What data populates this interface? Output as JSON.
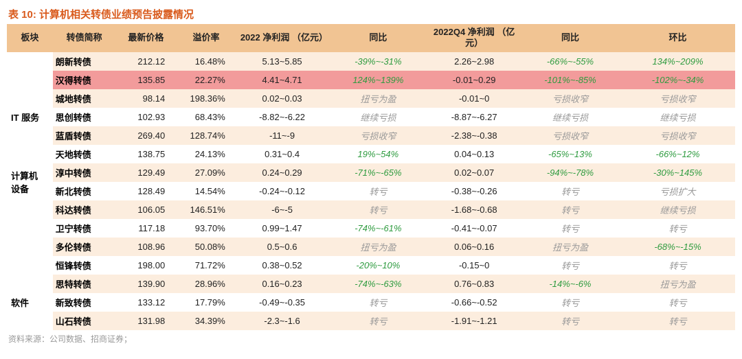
{
  "caption_prefix": "表 10:",
  "caption_text": "计算机相关转债业绩预告披露情况",
  "source": "资料来源：公司数据、招商证券；",
  "headers": {
    "sector": "板块",
    "name": "转债简称",
    "price": "最新价格",
    "premium": "溢价率",
    "profit2022": "2022 净利润\n（亿元）",
    "yoy": "同比",
    "profit2022q4": "2022Q4 净利润\n（亿元）",
    "yoy_q4": "同比",
    "qoq": "环比"
  },
  "colors": {
    "header_bg": "#f1c493",
    "odd_bg": "#fcedde",
    "even_bg": "#ffffff",
    "highlight_bg": "#f29b9b",
    "caption_color": "#d95a1c",
    "grey_text": "#999999",
    "green_text": "#2e9b3f"
  },
  "sectors": [
    {
      "label": "IT 服务",
      "start": 0,
      "span": 5,
      "label_row": 2
    },
    {
      "label": "计算机\n设备",
      "start": 5,
      "span": 4,
      "label_row": 5
    },
    {
      "label": "软件",
      "start": 9,
      "span": 6,
      "label_row": 12
    }
  ],
  "rows": [
    {
      "name": "朗新转债",
      "price": "212.12",
      "prem": "16.48%",
      "p2022": "5.13~5.85",
      "yoy": "-39%~-31%",
      "yoy_cls": "green",
      "p4": "2.26~2.98",
      "yoy4": "-66%~-55%",
      "yoy4_cls": "green",
      "qoq": "134%~209%",
      "qoq_cls": "green",
      "strip": "odd",
      "hl": false
    },
    {
      "name": "汉得转债",
      "price": "135.85",
      "prem": "22.27%",
      "p2022": "4.41~4.71",
      "yoy": "124%~139%",
      "yoy_cls": "green",
      "p4": "-0.01~0.29",
      "yoy4": "-101%~-85%",
      "yoy4_cls": "green",
      "qoq": "-102%~-34%",
      "qoq_cls": "green",
      "strip": "even",
      "hl": true
    },
    {
      "name": "城地转债",
      "price": "98.14",
      "prem": "198.36%",
      "p2022": "0.02~0.03",
      "yoy": "扭亏为盈",
      "yoy_cls": "grey",
      "p4": "-0.01~0",
      "yoy4": "亏损收窄",
      "yoy4_cls": "grey",
      "qoq": "亏损收窄",
      "qoq_cls": "grey",
      "strip": "odd",
      "hl": false
    },
    {
      "name": "思创转债",
      "price": "102.93",
      "prem": "68.43%",
      "p2022": "-8.82~-6.22",
      "yoy": "继续亏损",
      "yoy_cls": "grey",
      "p4": "-8.87~-6.27",
      "yoy4": "继续亏损",
      "yoy4_cls": "grey",
      "qoq": "继续亏损",
      "qoq_cls": "grey",
      "strip": "even",
      "hl": false
    },
    {
      "name": "蓝盾转债",
      "price": "269.40",
      "prem": "128.74%",
      "p2022": "-11~-9",
      "yoy": "亏损收窄",
      "yoy_cls": "grey",
      "p4": "-2.38~-0.38",
      "yoy4": "亏损收窄",
      "yoy4_cls": "grey",
      "qoq": "亏损收窄",
      "qoq_cls": "grey",
      "strip": "odd",
      "hl": false
    },
    {
      "name": "天地转债",
      "price": "138.75",
      "prem": "24.13%",
      "p2022": "0.31~0.4",
      "yoy": "19%~54%",
      "yoy_cls": "green",
      "p4": "0.04~0.13",
      "yoy4": "-65%~13%",
      "yoy4_cls": "green",
      "qoq": "-66%~12%",
      "qoq_cls": "green",
      "strip": "even",
      "hl": false
    },
    {
      "name": "淳中转债",
      "price": "129.49",
      "prem": "27.09%",
      "p2022": "0.24~0.29",
      "yoy": "-71%~-65%",
      "yoy_cls": "green",
      "p4": "0.02~0.07",
      "yoy4": "-94%~-78%",
      "yoy4_cls": "green",
      "qoq": "-30%~145%",
      "qoq_cls": "green",
      "strip": "odd",
      "hl": false
    },
    {
      "name": "新北转债",
      "price": "128.49",
      "prem": "14.54%",
      "p2022": "-0.24~-0.12",
      "yoy": "转亏",
      "yoy_cls": "grey",
      "p4": "-0.38~-0.26",
      "yoy4": "转亏",
      "yoy4_cls": "grey",
      "qoq": "亏损扩大",
      "qoq_cls": "grey",
      "strip": "even",
      "hl": false
    },
    {
      "name": "科达转债",
      "price": "106.05",
      "prem": "146.51%",
      "p2022": "-6~-5",
      "yoy": "转亏",
      "yoy_cls": "grey",
      "p4": "-1.68~-0.68",
      "yoy4": "转亏",
      "yoy4_cls": "grey",
      "qoq": "继续亏损",
      "qoq_cls": "grey",
      "strip": "odd",
      "hl": false
    },
    {
      "name": "卫宁转债",
      "price": "117.18",
      "prem": "93.70%",
      "p2022": "0.99~1.47",
      "yoy": "-74%~-61%",
      "yoy_cls": "green",
      "p4": "-0.41~-0.07",
      "yoy4": "转亏",
      "yoy4_cls": "grey",
      "qoq": "转亏",
      "qoq_cls": "grey",
      "strip": "even",
      "hl": false
    },
    {
      "name": "多伦转债",
      "price": "108.96",
      "prem": "50.08%",
      "p2022": "0.5~0.6",
      "yoy": "扭亏为盈",
      "yoy_cls": "grey",
      "p4": "0.06~0.16",
      "yoy4": "扭亏为盈",
      "yoy4_cls": "grey",
      "qoq": "-68%~-15%",
      "qoq_cls": "green",
      "strip": "odd",
      "hl": false
    },
    {
      "name": "恒锋转债",
      "price": "198.00",
      "prem": "71.72%",
      "p2022": "0.38~0.52",
      "yoy": "-20%~10%",
      "yoy_cls": "green",
      "p4": "-0.15~0",
      "yoy4": "转亏",
      "yoy4_cls": "grey",
      "qoq": "转亏",
      "qoq_cls": "grey",
      "strip": "even",
      "hl": false
    },
    {
      "name": "思特转债",
      "price": "139.90",
      "prem": "28.96%",
      "p2022": "0.16~0.23",
      "yoy": "-74%~-63%",
      "yoy_cls": "green",
      "p4": "0.76~0.83",
      "yoy4": "-14%~-6%",
      "yoy4_cls": "green",
      "qoq": "扭亏为盈",
      "qoq_cls": "grey",
      "strip": "odd",
      "hl": false
    },
    {
      "name": "新致转债",
      "price": "133.12",
      "prem": "17.79%",
      "p2022": "-0.49~-0.35",
      "yoy": "转亏",
      "yoy_cls": "grey",
      "p4": "-0.66~-0.52",
      "yoy4": "转亏",
      "yoy4_cls": "grey",
      "qoq": "转亏",
      "qoq_cls": "grey",
      "strip": "even",
      "hl": false
    },
    {
      "name": "山石转债",
      "price": "131.98",
      "prem": "34.39%",
      "p2022": "-2.3~-1.6",
      "yoy": "转亏",
      "yoy_cls": "grey",
      "p4": "-1.91~-1.21",
      "yoy4": "转亏",
      "yoy4_cls": "grey",
      "qoq": "转亏",
      "qoq_cls": "grey",
      "strip": "odd",
      "hl": false
    }
  ]
}
